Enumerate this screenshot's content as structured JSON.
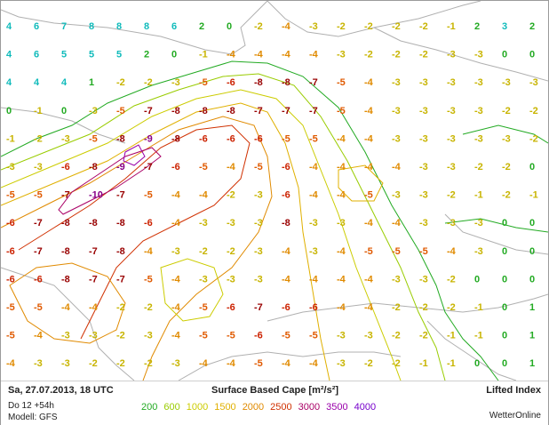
{
  "footer": {
    "date": "Sa, 27.07.2013, 18 UTC",
    "run": "Do 12 +54h",
    "model": "Modell: GFS",
    "param_title": "Surface Based Cape [m²/s²]",
    "index_title": "Lifted Index",
    "brand": "WetterOnline"
  },
  "legend": [
    {
      "value": "200",
      "color": "#22aa22"
    },
    {
      "value": "600",
      "color": "#99cc00"
    },
    {
      "value": "1000",
      "color": "#cccc00"
    },
    {
      "value": "1500",
      "color": "#e0b000"
    },
    {
      "value": "2000",
      "color": "#e08a00"
    },
    {
      "value": "2500",
      "color": "#d03000"
    },
    {
      "value": "3000",
      "color": "#aa0066"
    },
    {
      "value": "3500",
      "color": "#9900aa"
    },
    {
      "value": "4000",
      "color": "#7700cc"
    }
  ],
  "lifted_index_grid": {
    "cols": 20,
    "rows": 13,
    "values": [
      [
        4,
        6,
        7,
        8,
        8,
        8,
        6,
        2,
        0,
        -2,
        -4,
        -3,
        -2,
        -2,
        -2,
        -2,
        -1,
        2,
        3,
        2
      ],
      [
        4,
        6,
        5,
        5,
        5,
        2,
        0,
        -1,
        -4,
        -4,
        -4,
        -4,
        -3,
        -2,
        -2,
        -2,
        -3,
        -3,
        0,
        0
      ],
      [
        4,
        4,
        4,
        1,
        -2,
        -2,
        -3,
        -5,
        -6,
        -8,
        -8,
        -7,
        -5,
        -4,
        -3,
        -3,
        -3,
        -3,
        -3,
        -3
      ],
      [
        0,
        -1,
        0,
        -3,
        -5,
        -7,
        -8,
        -8,
        -8,
        -7,
        -7,
        -7,
        -5,
        -4,
        -3,
        -3,
        -3,
        -3,
        -2,
        -2
      ],
      [
        -1,
        -2,
        -3,
        -5,
        -8,
        -9,
        -8,
        -6,
        -6,
        -6,
        -5,
        -5,
        -4,
        -4,
        -3,
        -3,
        -3,
        -3,
        -3,
        -2
      ],
      [
        -3,
        -3,
        -6,
        -8,
        -9,
        -7,
        -6,
        -5,
        -4,
        -5,
        -6,
        -4,
        -4,
        -4,
        -4,
        -3,
        -3,
        -2,
        -2,
        0
      ],
      [
        -5,
        -5,
        -7,
        -10,
        -7,
        -5,
        -4,
        -4,
        -2,
        -3,
        -6,
        -4,
        -4,
        -5,
        -3,
        -3,
        -2,
        -1,
        -2,
        -1
      ],
      [
        -6,
        -7,
        -8,
        -8,
        -8,
        -6,
        -4,
        -3,
        -3,
        -3,
        -8,
        -3,
        -3,
        -4,
        -4,
        -3,
        -3,
        -3,
        0,
        0
      ],
      [
        -6,
        -7,
        -8,
        -7,
        -8,
        -4,
        -3,
        -2,
        -2,
        -3,
        -4,
        -3,
        -4,
        -5,
        -5,
        -5,
        -4,
        -3,
        0,
        0
      ],
      [
        -6,
        -6,
        -8,
        -7,
        -7,
        -5,
        -4,
        -3,
        -3,
        -3,
        -4,
        -4,
        -4,
        -4,
        -3,
        -3,
        -2,
        0,
        0,
        0
      ],
      [
        -5,
        -5,
        -4,
        -4,
        -2,
        -2,
        -4,
        -5,
        -6,
        -7,
        -6,
        -6,
        -4,
        -4,
        -2,
        -2,
        -2,
        -1,
        0,
        1
      ],
      [
        -5,
        -4,
        -3,
        -3,
        -2,
        -3,
        -4,
        -5,
        -5,
        -6,
        -5,
        -5,
        -3,
        -3,
        -2,
        -2,
        -1,
        -1,
        0,
        1
      ],
      [
        -4,
        -3,
        -3,
        -2,
        -2,
        -2,
        -3,
        -4,
        -4,
        -5,
        -4,
        -4,
        -3,
        -2,
        -2,
        -1,
        -1,
        0,
        0,
        1
      ]
    ]
  },
  "label_colors": {
    "cyan": "#11bbbb",
    "green": "#22aa22",
    "yellow": "#c8b400",
    "orange": "#e08a00",
    "orange_red": "#e05a00",
    "red": "#cc2200",
    "dark_red": "#990000",
    "magenta": "#880088"
  }
}
